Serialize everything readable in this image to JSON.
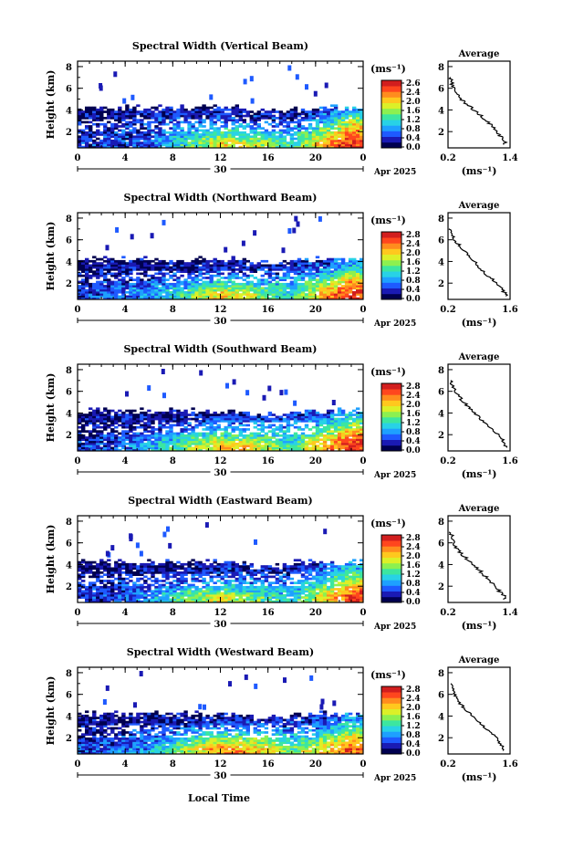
{
  "figure": {
    "xlabel_bottom": "Local Time",
    "colors": {
      "scale": [
        "#000050",
        "#1a1ab4",
        "#1e5aff",
        "#1ea0ff",
        "#28d2e6",
        "#3ce6a0",
        "#8cf050",
        "#dcf028",
        "#ffc81e",
        "#ff8c1e",
        "#ff461e",
        "#d21e1e"
      ],
      "axis": "#000000"
    }
  },
  "panels": [
    {
      "title": "Spectral Width (Vertical Beam)",
      "ylabel": "Height (km)",
      "yticks": [
        "2",
        "4",
        "6",
        "8"
      ],
      "xticks": [
        "0",
        "4",
        "8",
        "12",
        "16",
        "20",
        "0"
      ],
      "date_label": "30",
      "month_label": "Apr 2025",
      "colorbar": {
        "unit": "(ms⁻¹)",
        "ticks": [
          "2.6",
          "2.4",
          "2.0",
          "1.6",
          "1.2",
          "0.8",
          "0.4",
          "0.0"
        ]
      },
      "average": {
        "title": "Average",
        "yticks": [
          "2",
          "4",
          "6",
          "8"
        ],
        "xticks": [
          "0.2",
          "1.4"
        ],
        "xlabel": "(ms⁻¹)"
      }
    },
    {
      "title": "Spectral Width (Northward Beam)",
      "ylabel": "Height (km)",
      "yticks": [
        "2",
        "4",
        "6",
        "8"
      ],
      "xticks": [
        "0",
        "4",
        "8",
        "12",
        "16",
        "20",
        "0"
      ],
      "date_label": "30",
      "month_label": "Apr 2025",
      "colorbar": {
        "unit": "(ms⁻¹)",
        "ticks": [
          "2.8",
          "2.4",
          "2.0",
          "1.6",
          "1.2",
          "0.8",
          "0.4",
          "0.0"
        ]
      },
      "average": {
        "title": "Average",
        "yticks": [
          "2",
          "4",
          "6",
          "8"
        ],
        "xticks": [
          "0.2",
          "1.6"
        ],
        "xlabel": "(ms⁻¹)"
      }
    },
    {
      "title": "Spectral Width (Southward Beam)",
      "ylabel": "Height (km)",
      "yticks": [
        "2",
        "4",
        "6",
        "8"
      ],
      "xticks": [
        "0",
        "4",
        "8",
        "12",
        "16",
        "20",
        "0"
      ],
      "date_label": "30",
      "month_label": "Apr 2025",
      "colorbar": {
        "unit": "(ms⁻¹)",
        "ticks": [
          "2.8",
          "2.4",
          "2.0",
          "1.6",
          "1.2",
          "0.8",
          "0.4",
          "0.0"
        ]
      },
      "average": {
        "title": "Average",
        "yticks": [
          "2",
          "4",
          "6",
          "8"
        ],
        "xticks": [
          "0.2",
          "1.6"
        ],
        "xlabel": "(ms⁻¹)"
      }
    },
    {
      "title": "Spectral Width (Eastward Beam)",
      "ylabel": "Height (km)",
      "yticks": [
        "2",
        "4",
        "6",
        "8"
      ],
      "xticks": [
        "0",
        "4",
        "8",
        "12",
        "16",
        "20",
        "0"
      ],
      "date_label": "30",
      "month_label": "Apr 2025",
      "colorbar": {
        "unit": "(ms⁻¹)",
        "ticks": [
          "2.8",
          "2.4",
          "2.0",
          "1.6",
          "1.2",
          "0.8",
          "0.4",
          "0.0"
        ]
      },
      "average": {
        "title": "Average",
        "yticks": [
          "2",
          "4",
          "6",
          "8"
        ],
        "xticks": [
          "0.2",
          "1.4"
        ],
        "xlabel": "(ms⁻¹)"
      }
    },
    {
      "title": "Spectral Width (Westward Beam)",
      "ylabel": "Height (km)",
      "yticks": [
        "2",
        "4",
        "6",
        "8"
      ],
      "xticks": [
        "0",
        "4",
        "8",
        "12",
        "16",
        "20",
        "0"
      ],
      "date_label": "30",
      "month_label": "Apr 2025",
      "colorbar": {
        "unit": "(ms⁻¹)",
        "ticks": [
          "2.8",
          "2.4",
          "2.0",
          "1.6",
          "1.2",
          "0.8",
          "0.4",
          "0.0"
        ]
      },
      "average": {
        "title": "Average",
        "yticks": [
          "2",
          "4",
          "6",
          "8"
        ],
        "xticks": [
          "0.2",
          "1.6"
        ],
        "xlabel": "(ms⁻¹)"
      }
    }
  ],
  "chart_data": [
    {
      "type": "heatmap",
      "title": "Spectral Width (Vertical Beam)",
      "ylabel": "Height (km)",
      "xlim": [
        0,
        24
      ],
      "ylim": [
        0.5,
        8.5
      ],
      "colorbar_range": [
        0.0,
        2.8
      ],
      "time_bins": [
        0,
        3,
        6,
        9,
        12,
        15,
        18,
        21,
        23
      ],
      "height_bins": [
        1,
        2,
        3,
        4
      ],
      "values": [
        [
          0.4,
          0.5,
          0.6,
          1.2,
          1.8,
          1.6,
          1.2,
          2.2,
          2.6
        ],
        [
          0.3,
          0.4,
          0.5,
          0.8,
          1.2,
          1.0,
          0.8,
          1.6,
          2.2
        ],
        [
          0.2,
          0.3,
          0.4,
          0.6,
          0.5,
          0.5,
          0.4,
          1.0,
          1.6
        ],
        [
          0.1,
          0.2,
          0.2,
          0.3,
          0.3,
          0.3,
          0.2,
          0.5,
          0.9
        ]
      ],
      "average_profile": {
        "xlim": [
          0.2,
          1.4
        ],
        "ylim": [
          0.5,
          8.5
        ],
        "height": [
          1,
          2,
          3,
          4,
          5,
          6,
          7
        ],
        "value": [
          1.3,
          1.15,
          0.95,
          0.7,
          0.45,
          0.3,
          0.25
        ]
      }
    },
    {
      "type": "heatmap",
      "title": "Spectral Width (Northward Beam)",
      "ylabel": "Height (km)",
      "xlim": [
        0,
        24
      ],
      "ylim": [
        0.5,
        8.5
      ],
      "colorbar_range": [
        0.0,
        2.8
      ],
      "time_bins": [
        0,
        3,
        6,
        9,
        12,
        15,
        18,
        21,
        23
      ],
      "height_bins": [
        1,
        2,
        3,
        4
      ],
      "values": [
        [
          0.5,
          0.6,
          0.8,
          1.2,
          2.0,
          1.6,
          1.0,
          2.2,
          2.6
        ],
        [
          0.3,
          0.5,
          0.6,
          0.8,
          1.2,
          1.0,
          0.9,
          1.6,
          2.2
        ],
        [
          0.2,
          0.3,
          0.3,
          0.4,
          0.5,
          0.5,
          0.5,
          0.9,
          1.4
        ],
        [
          0.1,
          0.2,
          0.2,
          0.2,
          0.3,
          0.3,
          0.3,
          0.5,
          0.8
        ]
      ],
      "average_profile": {
        "xlim": [
          0.2,
          1.6
        ],
        "ylim": [
          0.5,
          8.5
        ],
        "height": [
          1,
          2,
          3,
          4,
          5,
          6,
          7
        ],
        "value": [
          1.5,
          1.3,
          1.0,
          0.8,
          0.55,
          0.35,
          0.25
        ]
      }
    },
    {
      "type": "heatmap",
      "title": "Spectral Width (Southward Beam)",
      "ylabel": "Height (km)",
      "xlim": [
        0,
        24
      ],
      "ylim": [
        0.5,
        8.5
      ],
      "colorbar_range": [
        0.0,
        2.8
      ],
      "time_bins": [
        0,
        3,
        6,
        9,
        12,
        15,
        18,
        21,
        23
      ],
      "height_bins": [
        1,
        2,
        3,
        4
      ],
      "values": [
        [
          0.4,
          0.5,
          0.9,
          1.4,
          2.0,
          1.8,
          1.2,
          2.2,
          2.6
        ],
        [
          0.3,
          0.4,
          0.6,
          0.9,
          1.2,
          1.2,
          1.0,
          1.6,
          2.2
        ],
        [
          0.2,
          0.3,
          0.3,
          0.4,
          0.6,
          0.7,
          0.6,
          1.0,
          1.5
        ],
        [
          0.1,
          0.2,
          0.2,
          0.2,
          0.3,
          0.3,
          0.4,
          0.5,
          0.9
        ]
      ],
      "average_profile": {
        "xlim": [
          0.2,
          1.6
        ],
        "ylim": [
          0.5,
          8.5
        ],
        "height": [
          1,
          2,
          3,
          4,
          5,
          6,
          7
        ],
        "value": [
          1.5,
          1.35,
          1.05,
          0.8,
          0.55,
          0.35,
          0.25
        ]
      }
    },
    {
      "type": "heatmap",
      "title": "Spectral Width (Eastward Beam)",
      "ylabel": "Height (km)",
      "xlim": [
        0,
        24
      ],
      "ylim": [
        0.5,
        8.5
      ],
      "colorbar_range": [
        0.0,
        2.8
      ],
      "time_bins": [
        0,
        3,
        6,
        9,
        12,
        15,
        18,
        21,
        23
      ],
      "height_bins": [
        1,
        2,
        3,
        4
      ],
      "values": [
        [
          0.4,
          0.5,
          0.8,
          1.4,
          1.8,
          1.4,
          1.0,
          2.0,
          2.6
        ],
        [
          0.3,
          0.4,
          0.5,
          0.8,
          1.0,
          0.9,
          0.8,
          1.4,
          2.0
        ],
        [
          0.2,
          0.3,
          0.3,
          0.4,
          0.5,
          0.5,
          0.4,
          0.9,
          1.4
        ],
        [
          0.1,
          0.2,
          0.2,
          0.2,
          0.3,
          0.3,
          0.2,
          0.5,
          0.8
        ]
      ],
      "average_profile": {
        "xlim": [
          0.2,
          1.4
        ],
        "ylim": [
          0.5,
          8.5
        ],
        "height": [
          1,
          2,
          3,
          4,
          5,
          6,
          7
        ],
        "value": [
          1.3,
          1.1,
          0.9,
          0.7,
          0.45,
          0.3,
          0.25
        ]
      }
    },
    {
      "type": "heatmap",
      "title": "Spectral Width (Westward Beam)",
      "ylabel": "Height (km)",
      "xlim": [
        0,
        24
      ],
      "ylim": [
        0.5,
        8.5
      ],
      "colorbar_range": [
        0.0,
        2.8
      ],
      "time_bins": [
        0,
        3,
        6,
        9,
        12,
        15,
        18,
        21,
        23
      ],
      "height_bins": [
        1,
        2,
        3,
        4
      ],
      "values": [
        [
          0.5,
          0.6,
          0.8,
          1.6,
          2.2,
          2.0,
          1.4,
          2.0,
          2.4
        ],
        [
          0.3,
          0.4,
          0.6,
          1.0,
          1.4,
          1.4,
          1.0,
          1.4,
          1.8
        ],
        [
          0.2,
          0.3,
          0.3,
          0.5,
          0.7,
          0.7,
          0.5,
          0.8,
          1.2
        ],
        [
          0.1,
          0.2,
          0.2,
          0.2,
          0.3,
          0.3,
          0.3,
          0.4,
          0.7
        ]
      ],
      "average_profile": {
        "xlim": [
          0.2,
          1.6
        ],
        "ylim": [
          0.5,
          8.5
        ],
        "height": [
          1,
          2,
          3,
          4,
          5,
          6,
          7
        ],
        "value": [
          1.45,
          1.3,
          1.0,
          0.75,
          0.5,
          0.35,
          0.25
        ]
      }
    }
  ]
}
